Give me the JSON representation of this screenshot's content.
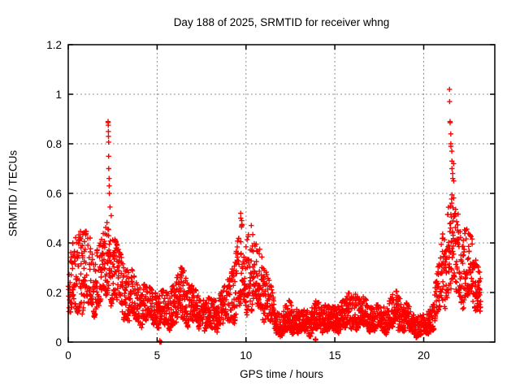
{
  "chart_data": {
    "type": "scatter",
    "title": "Day 188 of 2025, SRMTID for receiver whng",
    "xlabel": "GPS time / hours",
    "ylabel": "SRMTID / TECUs",
    "xlim": [
      0,
      24
    ],
    "ylim": [
      0,
      1.2
    ],
    "xticks": {
      "values": [
        0,
        5,
        10,
        15,
        20
      ],
      "labels": [
        "0",
        "5",
        "10",
        "15",
        "20"
      ]
    },
    "yticks": {
      "values": [
        0,
        0.2,
        0.4,
        0.6,
        0.8,
        1.0,
        1.2
      ],
      "labels": [
        "0",
        "0.2",
        "0.4",
        "0.6",
        "0.8",
        "1",
        "1.2"
      ]
    },
    "grid": {
      "visible": true,
      "style": "dashed",
      "color": "#909090"
    },
    "legend": {
      "visible": false
    },
    "axis_color": "#000000",
    "marker": {
      "shape": "plus",
      "color": "#ff0000",
      "size": 7
    },
    "x_data_range": [
      0,
      23.2
    ],
    "envelope": [
      [
        0.0,
        0.1,
        0.36
      ],
      [
        0.4,
        0.13,
        0.42
      ],
      [
        0.7,
        0.14,
        0.47
      ],
      [
        1.1,
        0.15,
        0.44
      ],
      [
        1.5,
        0.15,
        0.38
      ],
      [
        1.9,
        0.17,
        0.42
      ],
      [
        2.2,
        0.2,
        0.5
      ],
      [
        2.5,
        0.17,
        0.44
      ],
      [
        2.9,
        0.14,
        0.36
      ],
      [
        3.3,
        0.11,
        0.32
      ],
      [
        3.7,
        0.1,
        0.28
      ],
      [
        4.1,
        0.08,
        0.24
      ],
      [
        4.6,
        0.08,
        0.22
      ],
      [
        5.1,
        0.07,
        0.2
      ],
      [
        5.6,
        0.07,
        0.22
      ],
      [
        6.0,
        0.08,
        0.25
      ],
      [
        6.4,
        0.09,
        0.31
      ],
      [
        6.8,
        0.08,
        0.24
      ],
      [
        7.3,
        0.07,
        0.2
      ],
      [
        7.8,
        0.06,
        0.18
      ],
      [
        8.2,
        0.05,
        0.17
      ],
      [
        8.7,
        0.07,
        0.21
      ],
      [
        9.1,
        0.09,
        0.27
      ],
      [
        9.5,
        0.13,
        0.4
      ],
      [
        9.8,
        0.16,
        0.48
      ],
      [
        10.1,
        0.15,
        0.46
      ],
      [
        10.5,
        0.13,
        0.43
      ],
      [
        10.9,
        0.12,
        0.35
      ],
      [
        11.2,
        0.09,
        0.28
      ],
      [
        11.6,
        0.06,
        0.18
      ],
      [
        12.0,
        0.03,
        0.12
      ],
      [
        12.4,
        0.04,
        0.17
      ],
      [
        12.7,
        0.04,
        0.14
      ],
      [
        13.1,
        0.03,
        0.12
      ],
      [
        13.5,
        0.04,
        0.15
      ],
      [
        14.0,
        0.05,
        0.17
      ],
      [
        14.5,
        0.05,
        0.15
      ],
      [
        15.0,
        0.04,
        0.14
      ],
      [
        15.5,
        0.06,
        0.18
      ],
      [
        16.0,
        0.07,
        0.22
      ],
      [
        16.5,
        0.06,
        0.19
      ],
      [
        17.0,
        0.05,
        0.15
      ],
      [
        17.5,
        0.05,
        0.15
      ],
      [
        18.0,
        0.05,
        0.16
      ],
      [
        18.4,
        0.06,
        0.21
      ],
      [
        18.9,
        0.05,
        0.17
      ],
      [
        19.3,
        0.04,
        0.13
      ],
      [
        19.7,
        0.03,
        0.11
      ],
      [
        20.1,
        0.03,
        0.11
      ],
      [
        20.5,
        0.05,
        0.16
      ],
      [
        20.8,
        0.1,
        0.3
      ],
      [
        21.1,
        0.15,
        0.45
      ],
      [
        21.3,
        0.18,
        0.52
      ],
      [
        21.5,
        0.25,
        0.64
      ],
      [
        21.7,
        0.22,
        0.58
      ],
      [
        22.0,
        0.19,
        0.52
      ],
      [
        22.3,
        0.17,
        0.47
      ],
      [
        22.7,
        0.15,
        0.42
      ],
      [
        23.0,
        0.13,
        0.34
      ],
      [
        23.2,
        0.14,
        0.3
      ]
    ],
    "outliers": [
      {
        "x": 2.24,
        "values": [
          0.89,
          0.885,
          0.875,
          0.85,
          0.83,
          0.807
        ]
      },
      {
        "x": 2.27,
        "values": [
          0.75,
          0.7
        ]
      },
      {
        "x": 2.3,
        "values": [
          0.66,
          0.63,
          0.6
        ]
      },
      {
        "x": 2.35,
        "values": [
          0.545
        ]
      },
      {
        "x": 2.42,
        "values": [
          0.51
        ]
      },
      {
        "x": 5.15,
        "values": [
          0.005,
          0.0
        ]
      },
      {
        "x": 5.22,
        "values": [
          0.0
        ]
      },
      {
        "x": 9.7,
        "values": [
          0.52,
          0.5
        ]
      },
      {
        "x": 9.76,
        "values": [
          0.49,
          0.47
        ]
      },
      {
        "x": 10.3,
        "values": [
          0.47
        ]
      },
      {
        "x": 13.9,
        "values": [
          0.012,
          0.01,
          0.008,
          0.01,
          0.011
        ]
      },
      {
        "x": 21.45,
        "values": [
          1.02,
          0.97
        ]
      },
      {
        "x": 21.48,
        "values": [
          0.89,
          0.885
        ]
      },
      {
        "x": 21.52,
        "values": [
          0.84,
          0.8,
          0.79
        ]
      },
      {
        "x": 21.58,
        "values": [
          0.77,
          0.73,
          0.7
        ]
      },
      {
        "x": 21.63,
        "values": [
          0.68,
          0.66
        ]
      },
      {
        "x": 21.68,
        "values": [
          0.72,
          0.65
        ]
      }
    ],
    "sampling": {
      "step_hours": 0.012,
      "extra_point_probability": 0.42,
      "seed": 188
    }
  }
}
